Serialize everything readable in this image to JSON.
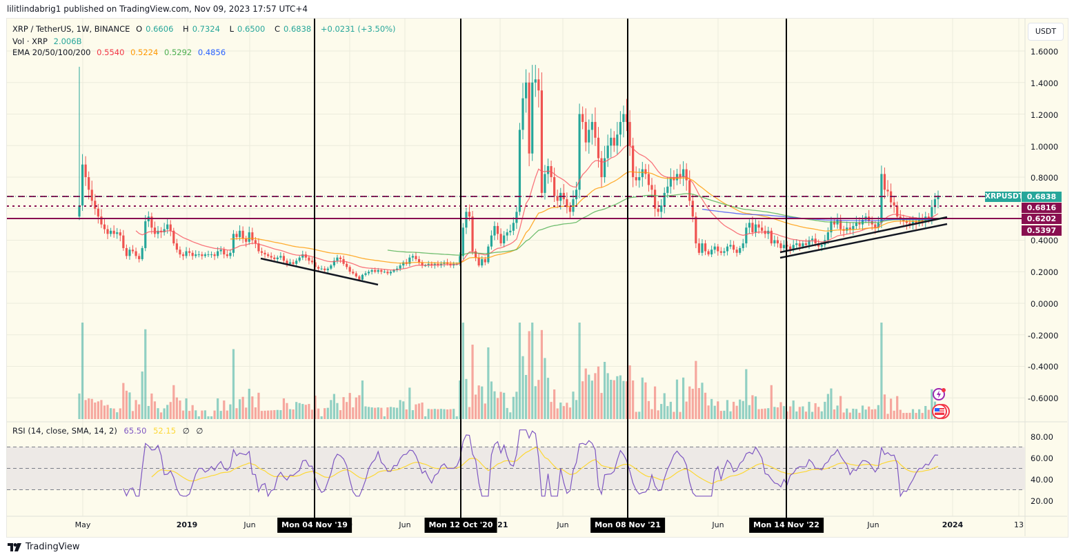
{
  "publisher": "lilitlindabrig1 published on TradingView.com, Nov 09, 2023 17:57 UTC+4",
  "header": {
    "symbol": "XRP / TetherUS, 1W, BINANCE",
    "open_label": "O",
    "open": "0.6606",
    "high_label": "H",
    "high": "0.7324",
    "low_label": "L",
    "low": "0.6500",
    "close_label": "C",
    "close": "0.6838",
    "change": "+0.0231 (+3.50%)",
    "volume_label": "Vol · XRP",
    "volume": "2.006B",
    "ema_label": "EMA 20/50/100/200",
    "ema_values": [
      "0.5540",
      "0.5224",
      "0.5292",
      "0.4856"
    ]
  },
  "currency_button": "USDT",
  "price_axis": [
    "1.6000",
    "1.4000",
    "1.2000",
    "1.0000",
    "0.8000",
    "0.4000",
    "0.2000",
    "0.0000",
    "-0.2000",
    "-0.4000",
    "-0.6000"
  ],
  "price_tags": {
    "symbol": "XRPUSDT",
    "last": "0.6838",
    "level1": "0.6816",
    "level2": "0.6202",
    "level3": "0.5397"
  },
  "rsi": {
    "label": "RSI (14, close, SMA, 14, 2)",
    "value": "65.50",
    "sma": "52.15",
    "extra1": "∅",
    "extra2": "∅",
    "axis": [
      "80.00",
      "60.00",
      "40.00",
      "20.00"
    ]
  },
  "time_axis": [
    "May",
    "2019",
    "Jun",
    "Jun",
    "Jun",
    "Jun",
    "2024",
    "13"
  ],
  "time_axis_partial": [
    "0",
    "021"
  ],
  "date_flags": [
    "Mon 04 Nov '19",
    "Mon 12 Oct '20",
    "Mon 08 Nov '21",
    "Mon 14 Nov '22"
  ],
  "footer": "TradingView",
  "colors": {
    "up": "#26a69a",
    "down": "#ef5350",
    "ema20": "#f7525f",
    "ema50": "#ff9800",
    "ema100": "#4caf50",
    "ema200": "#3f51f5",
    "level": "#880e4f",
    "rsi": "#7e57c2",
    "rsi_sma": "#fdd835",
    "background": "#fdfbec"
  },
  "chart_data": {
    "type": "candlestick",
    "title": "XRP / TetherUS, 1W, BINANCE",
    "ylabel": "USDT",
    "ylim": [
      -0.7,
      1.75
    ],
    "grid": true,
    "legend": [
      "Vol · XRP 2.006B",
      "EMA 20 0.5540",
      "EMA 50 0.5224",
      "EMA 100 0.5292",
      "EMA 200 0.4856"
    ],
    "annotations": {
      "horizontal_levels": [
        0.6838,
        0.6816,
        0.6202
      ],
      "vertical_lines": [
        "Mon 04 Nov '19",
        "Mon 12 Oct '20",
        "Mon 08 Nov '21",
        "Mon 14 Nov '22"
      ],
      "trendlines": [
        {
          "from": [
            0.29,
            "2019-07"
          ],
          "to": [
            0.13,
            "2020-03"
          ]
        },
        {
          "from": [
            0.33,
            "2022-11"
          ],
          "to": [
            0.62,
            "2023-11"
          ]
        },
        {
          "from": [
            0.29,
            "2022-11"
          ],
          "to": [
            0.55,
            "2023-11"
          ]
        }
      ]
    },
    "ohlc_last": {
      "open": 0.6606,
      "high": 0.7324,
      "low": 0.65,
      "close": 0.6838
    },
    "approx_closes": [
      0.62,
      0.88,
      0.8,
      0.72,
      0.65,
      0.6,
      0.55,
      0.5,
      0.47,
      0.44,
      0.46,
      0.44,
      0.45,
      0.43,
      0.35,
      0.3,
      0.34,
      0.33,
      0.3,
      0.28,
      0.35,
      0.52,
      0.55,
      0.48,
      0.44,
      0.46,
      0.45,
      0.47,
      0.5,
      0.46,
      0.38,
      0.34,
      0.31,
      0.3,
      0.33,
      0.32,
      0.3,
      0.31,
      0.31,
      0.3,
      0.31,
      0.31,
      0.31,
      0.3,
      0.33,
      0.34,
      0.31,
      0.3,
      0.32,
      0.44,
      0.42,
      0.46,
      0.41,
      0.39,
      0.45,
      0.4,
      0.38,
      0.33,
      0.32,
      0.31,
      0.3,
      0.29,
      0.28,
      0.29,
      0.3,
      0.27,
      0.25,
      0.26,
      0.25,
      0.27,
      0.29,
      0.31,
      0.29,
      0.27,
      0.26,
      0.23,
      0.22,
      0.22,
      0.21,
      0.22,
      0.24,
      0.27,
      0.29,
      0.28,
      0.25,
      0.23,
      0.2,
      0.19,
      0.17,
      0.15,
      0.18,
      0.19,
      0.2,
      0.21,
      0.2,
      0.21,
      0.2,
      0.2,
      0.19,
      0.2,
      0.21,
      0.22,
      0.24,
      0.26,
      0.25,
      0.29,
      0.3,
      0.28,
      0.26,
      0.24,
      0.24,
      0.25,
      0.24,
      0.25,
      0.24,
      0.25,
      0.26,
      0.25,
      0.24,
      0.25,
      0.25,
      0.3,
      0.48,
      0.58,
      0.55,
      0.33,
      0.29,
      0.24,
      0.28,
      0.26,
      0.36,
      0.43,
      0.49,
      0.44,
      0.38,
      0.43,
      0.45,
      0.46,
      0.51,
      0.58,
      1.1,
      1.3,
      1.4,
      0.95,
      1.4,
      1.42,
      1.35,
      0.7,
      0.82,
      0.87,
      0.8,
      0.68,
      0.65,
      0.7,
      0.66,
      0.61,
      0.58,
      0.66,
      0.72,
      1.2,
      1.15,
      1.02,
      1.1,
      1.15,
      1.05,
      0.92,
      0.8,
      0.92,
      1.0,
      1.05,
      1.0,
      1.07,
      1.15,
      1.2,
      1.15,
      1.0,
      0.8,
      0.78,
      0.8,
      0.85,
      0.82,
      0.75,
      0.72,
      0.6,
      0.58,
      0.62,
      0.7,
      0.74,
      0.8,
      0.78,
      0.82,
      0.8,
      0.85,
      0.78,
      0.65,
      0.55,
      0.38,
      0.32,
      0.38,
      0.33,
      0.31,
      0.34,
      0.36,
      0.33,
      0.32,
      0.33,
      0.36,
      0.37,
      0.34,
      0.32,
      0.35,
      0.38,
      0.48,
      0.51,
      0.45,
      0.5,
      0.48,
      0.46,
      0.44,
      0.46,
      0.38,
      0.4,
      0.38,
      0.35,
      0.37,
      0.36,
      0.34,
      0.37,
      0.38,
      0.36,
      0.38,
      0.37,
      0.4,
      0.41,
      0.38,
      0.36,
      0.37,
      0.4,
      0.45,
      0.52,
      0.5,
      0.53,
      0.47,
      0.46,
      0.48,
      0.47,
      0.49,
      0.51,
      0.5,
      0.53,
      0.55,
      0.52,
      0.5,
      0.48,
      0.51,
      0.82,
      0.72,
      0.71,
      0.64,
      0.62,
      0.55,
      0.53,
      0.52,
      0.51,
      0.5,
      0.52,
      0.51,
      0.53,
      0.52,
      0.55,
      0.53,
      0.61,
      0.66,
      0.6838
    ],
    "rsi_series_approx": {
      "name": "RSI 14",
      "last": 65.5,
      "range": [
        20,
        90
      ],
      "bands": [
        70,
        50,
        30
      ]
    },
    "rsi_sma_last": 52.15
  }
}
